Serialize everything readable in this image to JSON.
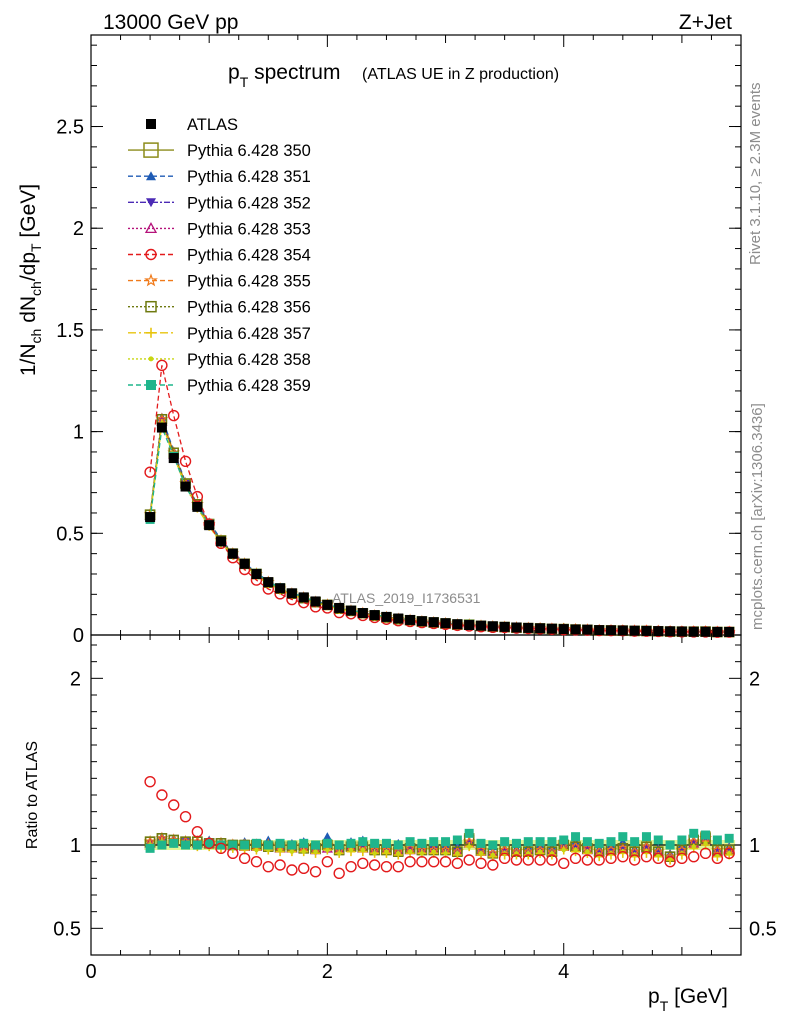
{
  "header": {
    "energy_label": "13000 GeV pp",
    "process_label": "Z+Jet"
  },
  "side_text": {
    "rivet": "Rivet 3.1.10, ≥ 2.3M events",
    "mcplots": "mcplots.cern.ch [arXiv:1306.3436]"
  },
  "chart_data": [
    {
      "type": "line",
      "title_main": "p",
      "title_sub": "T",
      "title_rest": " spectrum",
      "subtitle": "(ATLAS UE in Z production)",
      "analysis_label": "ATLAS_2019_I1736531",
      "xlabel": "p_T [GeV]",
      "ylabel": "1/N_ch dN_ch/dp_T [GeV]",
      "xlim": [
        0,
        5.5
      ],
      "ylim": [
        0,
        2.95
      ],
      "yticks": [
        0,
        0.5,
        1,
        1.5,
        2,
        2.5
      ],
      "ytick_labels": [
        "0",
        "0.5",
        "1",
        "1.5",
        "2",
        "2.5"
      ],
      "x": [
        0.5,
        0.6,
        0.7,
        0.8,
        0.9,
        1.0,
        1.1,
        1.2,
        1.3,
        1.4,
        1.5,
        1.6,
        1.7,
        1.8,
        1.9,
        2.0,
        2.1,
        2.2,
        2.3,
        2.4,
        2.5,
        2.6,
        2.7,
        2.8,
        2.9,
        3.0,
        3.1,
        3.2,
        3.3,
        3.4,
        3.5,
        3.6,
        3.7,
        3.8,
        3.9,
        4.0,
        4.1,
        4.2,
        4.3,
        4.4,
        4.5,
        4.6,
        4.7,
        4.8,
        4.9,
        5.0,
        5.1,
        5.2,
        5.3,
        5.4
      ],
      "atlas": [
        0.58,
        1.02,
        0.87,
        0.73,
        0.63,
        0.54,
        0.46,
        0.4,
        0.35,
        0.3,
        0.26,
        0.23,
        0.205,
        0.185,
        0.165,
        0.148,
        0.133,
        0.12,
        0.108,
        0.098,
        0.089,
        0.081,
        0.074,
        0.068,
        0.063,
        0.058,
        0.053,
        0.049,
        0.046,
        0.043,
        0.04,
        0.037,
        0.035,
        0.033,
        0.031,
        0.029,
        0.027,
        0.026,
        0.024,
        0.023,
        0.022,
        0.021,
        0.02,
        0.019,
        0.018,
        0.017,
        0.016,
        0.016,
        0.015,
        0.015
      ],
      "series": [
        {
          "name": "ATLAS",
          "ratio": [
            1,
            1,
            1,
            1,
            1,
            1,
            1,
            1,
            1,
            1,
            1,
            1,
            1,
            1,
            1,
            1,
            1,
            1,
            1,
            1,
            1,
            1,
            1,
            1,
            1,
            1,
            1,
            1,
            1,
            1,
            1,
            1,
            1,
            1,
            1,
            1,
            1,
            1,
            1,
            1,
            1,
            1,
            1,
            1,
            1,
            1,
            1,
            1,
            1,
            1
          ]
        },
        {
          "name": "Pythia 6.428 350",
          "ratio": [
            1.02,
            1.04,
            1.03,
            1.02,
            1.02,
            1.01,
            1.01,
            1.0,
            1.0,
            1.0,
            0.99,
            0.99,
            0.99,
            0.98,
            0.98,
            1.0,
            0.97,
            0.99,
            0.99,
            0.97,
            0.97,
            0.96,
            0.98,
            0.97,
            0.97,
            0.97,
            0.96,
            1.04,
            0.97,
            0.95,
            0.97,
            0.96,
            0.96,
            0.97,
            0.96,
            1.0,
            0.99,
            0.98,
            0.96,
            0.97,
            0.98,
            0.96,
            0.99,
            0.96,
            0.93,
            0.97,
            1.03,
            1.05,
            0.97,
            0.97
          ]
        },
        {
          "name": "Pythia 6.428 351",
          "ratio": [
            1.02,
            1.05,
            1.04,
            1.03,
            1.02,
            1.03,
            1.02,
            1.01,
            1.02,
            1.01,
            1.03,
            1.0,
            1.01,
            1.02,
            1.0,
            1.05,
            0.98,
            1.02,
            1.03,
            0.99,
            1.0,
            1.01,
            0.99,
            0.99,
            1.0,
            1.0,
            0.99,
            1.02,
            0.99,
            0.99,
            0.98,
            0.98,
            0.99,
            1.0,
            0.99,
            1.03,
            1.02,
            1.0,
            0.98,
            1.0,
            1.02,
            0.98,
            1.0,
            0.98,
            0.95,
            1.0,
            1.03,
            1.02,
            0.98,
            0.99
          ]
        },
        {
          "name": "Pythia 6.428 352",
          "ratio": [
            1.01,
            1.03,
            1.02,
            1.02,
            1.01,
            1.0,
            1.0,
            0.99,
            0.99,
            0.98,
            0.99,
            0.98,
            0.97,
            0.97,
            0.96,
            0.98,
            0.96,
            0.98,
            0.98,
            0.96,
            0.97,
            0.95,
            0.96,
            0.96,
            0.97,
            0.96,
            0.96,
            1.0,
            0.95,
            0.94,
            0.96,
            0.95,
            0.95,
            0.96,
            0.95,
            0.98,
            0.98,
            0.97,
            0.95,
            0.96,
            0.97,
            0.95,
            0.97,
            0.95,
            0.92,
            0.96,
            1.0,
            1.02,
            0.95,
            0.96
          ]
        },
        {
          "name": "Pythia 6.428 353",
          "ratio": [
            1.01,
            1.03,
            1.02,
            1.02,
            1.01,
            1.01,
            1.0,
            1.0,
            0.99,
            0.99,
            0.99,
            0.98,
            0.98,
            0.98,
            0.97,
            0.98,
            0.97,
            0.99,
            0.98,
            0.97,
            0.97,
            0.96,
            0.97,
            0.97,
            0.97,
            0.97,
            0.96,
            1.01,
            0.96,
            0.95,
            0.96,
            0.96,
            0.96,
            0.97,
            0.96,
            0.99,
            0.99,
            0.97,
            0.96,
            0.97,
            0.98,
            0.96,
            0.98,
            0.96,
            0.93,
            0.97,
            1.01,
            1.03,
            0.96,
            0.97
          ]
        },
        {
          "name": "Pythia 6.428 354",
          "ratio": [
            1.38,
            1.3,
            1.24,
            1.17,
            1.08,
            1.01,
            0.98,
            0.95,
            0.92,
            0.9,
            0.87,
            0.88,
            0.85,
            0.86,
            0.84,
            0.9,
            0.83,
            0.87,
            0.89,
            0.88,
            0.87,
            0.87,
            0.9,
            0.9,
            0.9,
            0.9,
            0.89,
            0.91,
            0.89,
            0.88,
            0.92,
            0.91,
            0.91,
            0.91,
            0.91,
            0.89,
            0.92,
            0.91,
            0.91,
            0.92,
            0.93,
            0.91,
            0.93,
            0.92,
            0.9,
            0.92,
            0.93,
            0.95,
            0.92,
            0.95
          ]
        },
        {
          "name": "Pythia 6.428 355",
          "ratio": [
            1.02,
            1.04,
            1.03,
            1.02,
            1.02,
            1.01,
            1.01,
            1.0,
            1.0,
            1.0,
            1.0,
            0.99,
            0.99,
            0.99,
            0.98,
            1.0,
            0.97,
            0.99,
            0.99,
            0.97,
            0.97,
            0.96,
            0.98,
            0.97,
            0.97,
            0.97,
            0.96,
            1.02,
            0.97,
            0.95,
            0.97,
            0.96,
            0.96,
            0.97,
            0.96,
            1.0,
            0.99,
            0.98,
            0.96,
            0.97,
            0.98,
            0.96,
            0.99,
            0.96,
            0.93,
            0.97,
            1.02,
            1.04,
            0.97,
            0.97
          ]
        },
        {
          "name": "Pythia 6.428 356",
          "ratio": [
            1.02,
            1.04,
            1.03,
            1.02,
            1.02,
            1.01,
            1.01,
            1.0,
            1.0,
            1.0,
            0.99,
            0.99,
            0.99,
            0.98,
            0.98,
            1.0,
            0.97,
            0.99,
            0.99,
            0.97,
            0.97,
            0.96,
            0.98,
            0.97,
            0.97,
            0.97,
            0.96,
            1.03,
            0.97,
            0.95,
            0.97,
            0.96,
            0.96,
            0.97,
            0.96,
            1.0,
            0.99,
            0.98,
            0.96,
            0.97,
            0.98,
            0.96,
            0.99,
            0.96,
            0.93,
            0.97,
            1.03,
            1.04,
            0.97,
            0.97
          ]
        },
        {
          "name": "Pythia 6.428 357",
          "ratio": [
            1.0,
            1.02,
            1.01,
            1.0,
            0.99,
            0.99,
            0.98,
            0.98,
            0.97,
            0.97,
            0.97,
            0.96,
            0.96,
            0.96,
            0.95,
            0.97,
            0.95,
            0.96,
            0.96,
            0.95,
            0.95,
            0.94,
            0.95,
            0.95,
            0.95,
            0.95,
            0.94,
            0.99,
            0.94,
            0.93,
            0.94,
            0.94,
            0.94,
            0.95,
            0.94,
            0.97,
            0.96,
            0.95,
            0.93,
            0.94,
            0.95,
            0.93,
            0.95,
            0.93,
            0.91,
            0.94,
            0.98,
            1.0,
            0.93,
            0.94
          ]
        },
        {
          "name": "Pythia 6.428 358",
          "ratio": [
            1.0,
            1.02,
            1.01,
            1.01,
            1.0,
            0.99,
            0.99,
            0.98,
            0.98,
            0.97,
            0.97,
            0.97,
            0.96,
            0.96,
            0.96,
            0.97,
            0.95,
            0.97,
            0.97,
            0.95,
            0.96,
            0.95,
            0.96,
            0.95,
            0.96,
            0.95,
            0.95,
            0.99,
            0.95,
            0.94,
            0.95,
            0.95,
            0.95,
            0.96,
            0.95,
            0.97,
            0.97,
            0.96,
            0.94,
            0.95,
            0.96,
            0.94,
            0.96,
            0.94,
            0.92,
            0.95,
            0.99,
            1.01,
            0.94,
            0.95
          ]
        },
        {
          "name": "Pythia 6.428 359",
          "ratio": [
            0.98,
            1.0,
            1.01,
            1.0,
            1.0,
            1.01,
            1.0,
            1.0,
            1.0,
            1.01,
            1.0,
            1.01,
            1.0,
            1.01,
            1.0,
            1.01,
            1.0,
            1.01,
            1.02,
            1.01,
            1.01,
            1.0,
            1.02,
            1.01,
            1.02,
            1.02,
            1.03,
            1.07,
            1.01,
            1.0,
            1.02,
            1.01,
            1.02,
            1.02,
            1.02,
            1.03,
            1.05,
            1.02,
            1.01,
            1.02,
            1.05,
            1.02,
            1.05,
            1.03,
            1.0,
            1.03,
            1.07,
            1.06,
            1.03,
            1.04
          ]
        }
      ]
    },
    {
      "type": "scatter",
      "ylabel": "Ratio to ATLAS",
      "xlabel": "p_T [GeV]",
      "xlim": [
        0,
        5.5
      ],
      "ylim": [
        0.34,
        2.26
      ],
      "yticks": [
        0.5,
        1,
        2
      ],
      "ytick_labels": [
        "0.5",
        "1",
        "2"
      ],
      "xticks": [
        0,
        2,
        4
      ],
      "xtick_labels": [
        "0",
        "2",
        "4"
      ],
      "band_color": "#d9f27a"
    }
  ],
  "styles": [
    {
      "color": "#000000",
      "marker": "square-filled",
      "dash": ""
    },
    {
      "color": "#8c8c1a",
      "marker": "square-open",
      "dash": ""
    },
    {
      "color": "#1f5bb5",
      "marker": "triangle-up-filled",
      "dash": "5,3"
    },
    {
      "color": "#4b2ab5",
      "marker": "triangle-down-filled",
      "dash": "6,2,2,2"
    },
    {
      "color": "#b5127a",
      "marker": "triangle-up-open",
      "dash": "2,2"
    },
    {
      "color": "#e31a1c",
      "marker": "circle-open",
      "dash": "5,3"
    },
    {
      "color": "#f07a1a",
      "marker": "star-open",
      "dash": "5,3"
    },
    {
      "color": "#6f7a10",
      "marker": "square-open",
      "dash": "2,2"
    },
    {
      "color": "#e8c40e",
      "marker": "cross",
      "dash": "8,3,2,3"
    },
    {
      "color": "#c8d612",
      "marker": "dot",
      "dash": "2,2"
    },
    {
      "color": "#1fb58c",
      "marker": "square-filled",
      "dash": "5,3"
    }
  ]
}
